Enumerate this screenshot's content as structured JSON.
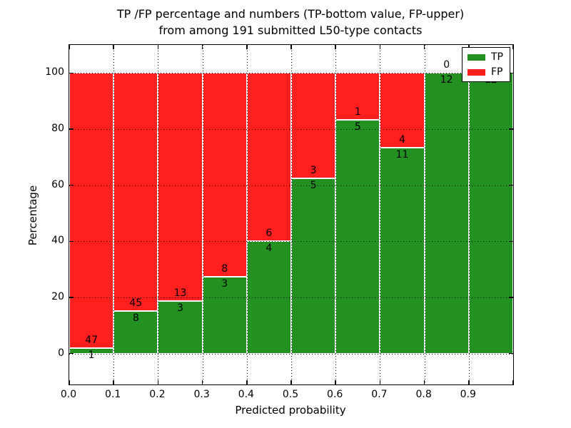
{
  "title": {
    "line1": "TP /FP percentage and numbers (TP-bottom value, FP-upper)",
    "line2": "from among 191 submitted L50-type contacts"
  },
  "axes": {
    "xlabel": "Predicted probability",
    "ylabel": "Percentage",
    "x_tick_labels": [
      "0.0",
      "0.1",
      "0.2",
      "0.3",
      "0.4",
      "0.5",
      "0.6",
      "0.7",
      "0.8",
      "0.9"
    ],
    "y_tick_labels": [
      "0",
      "20",
      "40",
      "60",
      "80",
      "100"
    ],
    "y_tick_values": [
      0,
      20,
      40,
      60,
      80,
      100
    ],
    "xlim": [
      0.0,
      1.0
    ],
    "ylim": [
      -11,
      110
    ],
    "grid_style": "dotted"
  },
  "legend": {
    "position": "upper right",
    "items": [
      {
        "label": "TP",
        "color": "#229122"
      },
      {
        "label": "FP",
        "color": "#ff1f1f"
      }
    ]
  },
  "chart_data": {
    "type": "bar",
    "stacked": true,
    "normalized_to_percent": true,
    "total_contacts": 191,
    "bin_width": 0.1,
    "bin_starts": [
      0.0,
      0.1,
      0.2,
      0.3,
      0.4,
      0.5,
      0.6,
      0.7,
      0.8,
      0.9
    ],
    "series": [
      {
        "name": "TP",
        "color": "#229122",
        "counts": [
          1,
          8,
          3,
          3,
          4,
          5,
          5,
          11,
          12,
          12
        ]
      },
      {
        "name": "FP",
        "color": "#ff1f1f",
        "counts": [
          47,
          45,
          13,
          8,
          6,
          3,
          1,
          4,
          0,
          0
        ]
      }
    ],
    "tp_percent": [
      2.1,
      15.1,
      18.8,
      27.3,
      40.0,
      62.5,
      83.3,
      73.3,
      100.0,
      100.0
    ],
    "title": "TP /FP percentage and numbers (TP-bottom value, FP-upper) from among 191 submitted L50-type contacts",
    "xlabel": "Predicted probability",
    "ylabel": "Percentage"
  }
}
